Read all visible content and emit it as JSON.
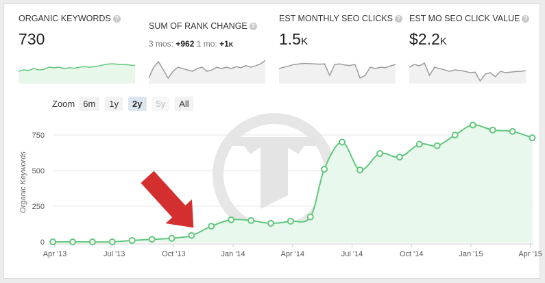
{
  "stats": [
    {
      "label": "ORGANIC KEYWORDS",
      "value": "730",
      "unit": "",
      "spark": [
        0.45,
        0.5,
        0.48,
        0.55,
        0.5,
        0.52,
        0.6,
        0.58,
        0.6,
        0.55,
        0.58,
        0.56,
        0.6,
        0.62,
        0.6,
        0.62,
        0.65,
        0.7,
        0.72,
        0.72,
        0.7,
        0.7,
        0.68,
        0.66
      ]
    },
    {
      "label": "SUM OF RANK CHANGE",
      "sub": {
        "prefix": "3 mos:",
        "v1": "+962",
        "mid": "1 mo:",
        "v2": "+1",
        "unit": "K"
      },
      "spark": [
        0.2,
        0.6,
        0.8,
        0.5,
        0.2,
        0.45,
        0.6,
        0.55,
        0.5,
        0.45,
        0.55,
        0.6,
        0.45,
        0.5,
        0.6,
        0.55,
        0.6,
        0.55,
        0.62,
        0.58,
        0.66,
        0.6,
        0.65,
        0.72,
        0.85
      ]
    },
    {
      "label": "EST MONTHLY SEO CLICKS",
      "value": "1.5",
      "unit": "K",
      "spark": [
        0.55,
        0.6,
        0.65,
        0.7,
        0.72,
        0.74,
        0.73,
        0.72,
        0.71,
        0.72,
        0.3,
        0.7,
        0.72,
        0.68,
        0.66,
        0.7,
        0.2,
        0.3,
        0.6,
        0.55,
        0.6,
        0.58,
        0.65,
        0.7
      ]
    },
    {
      "label": "EST MO SEO CLICK VALUE",
      "value": "$2.2",
      "unit": "K",
      "spark": [
        0.6,
        0.7,
        0.65,
        0.75,
        0.3,
        0.6,
        0.55,
        0.5,
        0.45,
        0.5,
        0.48,
        0.45,
        0.4,
        0.42,
        0.1,
        0.35,
        0.4,
        0.25,
        0.45,
        0.4,
        0.42,
        0.44,
        0.45,
        0.47
      ]
    }
  ],
  "info_glyph": "?",
  "zoom": {
    "label": "Zoom",
    "buttons": [
      {
        "label": "6m",
        "state": "normal"
      },
      {
        "label": "1y",
        "state": "normal"
      },
      {
        "label": "2y",
        "state": "active"
      },
      {
        "label": "5y",
        "state": "disabled"
      },
      {
        "label": "All",
        "state": "normal"
      }
    ]
  },
  "colors": {
    "line": "#5ec87a",
    "fill": "#e9f8ed",
    "grid": "#e4e4e4",
    "arrow": "#d32f2f"
  },
  "chart_data": {
    "type": "area",
    "ylabel": "Organic Keywords",
    "ylim": [
      0,
      800
    ],
    "yticks": [
      0,
      250,
      500,
      750
    ],
    "xticks": [
      {
        "label": "Apr '13",
        "x": 0
      },
      {
        "label": "Jul '13",
        "x": 3
      },
      {
        "label": "Oct '13",
        "x": 6
      },
      {
        "label": "Jan '14",
        "x": 9
      },
      {
        "label": "Apr '14",
        "x": 12
      },
      {
        "label": "Jul '14",
        "x": 15
      },
      {
        "label": "Oct '14",
        "x": 18
      },
      {
        "label": "Jan '15",
        "x": 21
      },
      {
        "label": "Apr '15",
        "x": 24
      }
    ],
    "series": [
      {
        "points": [
          [
            -0.1,
            0
          ],
          [
            0.9,
            0
          ],
          [
            1.9,
            0
          ],
          [
            2.9,
            0
          ],
          [
            3.9,
            10
          ],
          [
            4.9,
            18
          ],
          [
            5.9,
            25
          ],
          [
            6.9,
            45
          ],
          [
            7.9,
            110
          ],
          [
            8.9,
            155
          ],
          [
            9.9,
            150
          ],
          [
            10.9,
            130
          ],
          [
            11.9,
            145
          ],
          [
            12.9,
            175
          ],
          [
            13.6,
            510
          ],
          [
            14.5,
            700
          ],
          [
            15.4,
            505
          ],
          [
            16.4,
            620
          ],
          [
            17.4,
            595
          ],
          [
            18.4,
            685
          ],
          [
            19.3,
            675
          ],
          [
            20.2,
            750
          ],
          [
            21.1,
            820
          ],
          [
            22.1,
            785
          ],
          [
            23.1,
            775
          ],
          [
            24.1,
            730
          ]
        ]
      }
    ],
    "annotation": {
      "type": "arrow",
      "points_to": [
        7.0,
        100
      ]
    }
  }
}
